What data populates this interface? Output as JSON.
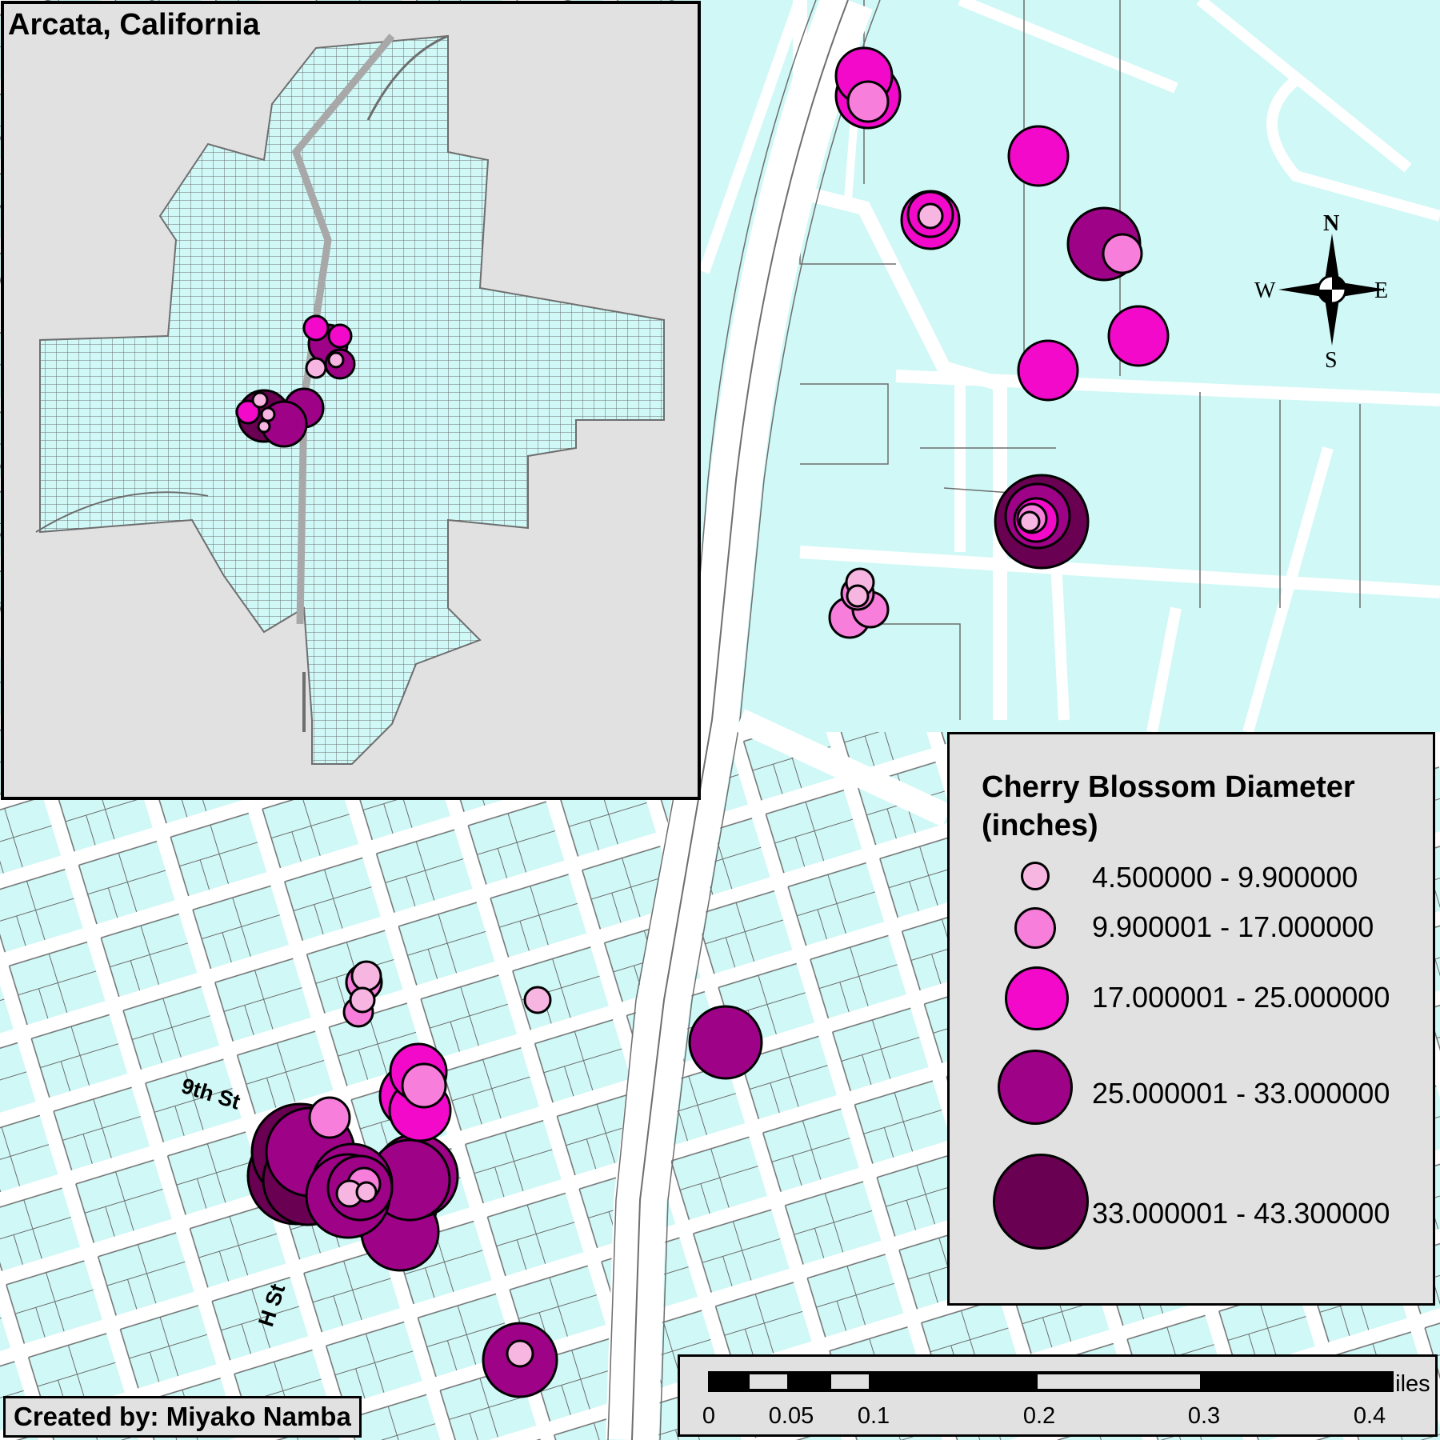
{
  "inset": {
    "title": "Arcata, California"
  },
  "credit": "Created by: Miyako Namba",
  "streets": [
    "9th St",
    "H St"
  ],
  "compass": {
    "n": "N",
    "s": "S",
    "e": "E",
    "w": "W"
  },
  "legend": {
    "title_line1": "Cherry Blossom Diameter",
    "title_line2": "(inches)",
    "classes": [
      {
        "label": "4.500000 - 9.900000",
        "color": "#f7b6e2"
      },
      {
        "label": "9.900001 - 17.000000",
        "color": "#f77fdb"
      },
      {
        "label": "17.000001 - 25.000000",
        "color": "#f209ca"
      },
      {
        "label": "25.000001 - 33.000000",
        "color": "#9e0286"
      },
      {
        "label": "33.000001 - 43.300000",
        "color": "#690052"
      }
    ]
  },
  "scalebar": {
    "ticks": [
      "0",
      "0.05",
      "0.1",
      "0.2",
      "0.3",
      "0.4"
    ],
    "unit": "Miles"
  },
  "colors": {
    "land": "#cff8f6",
    "road": "#ffffff",
    "outline": "#6e6e6e",
    "frame": "#e1e1e1"
  }
}
